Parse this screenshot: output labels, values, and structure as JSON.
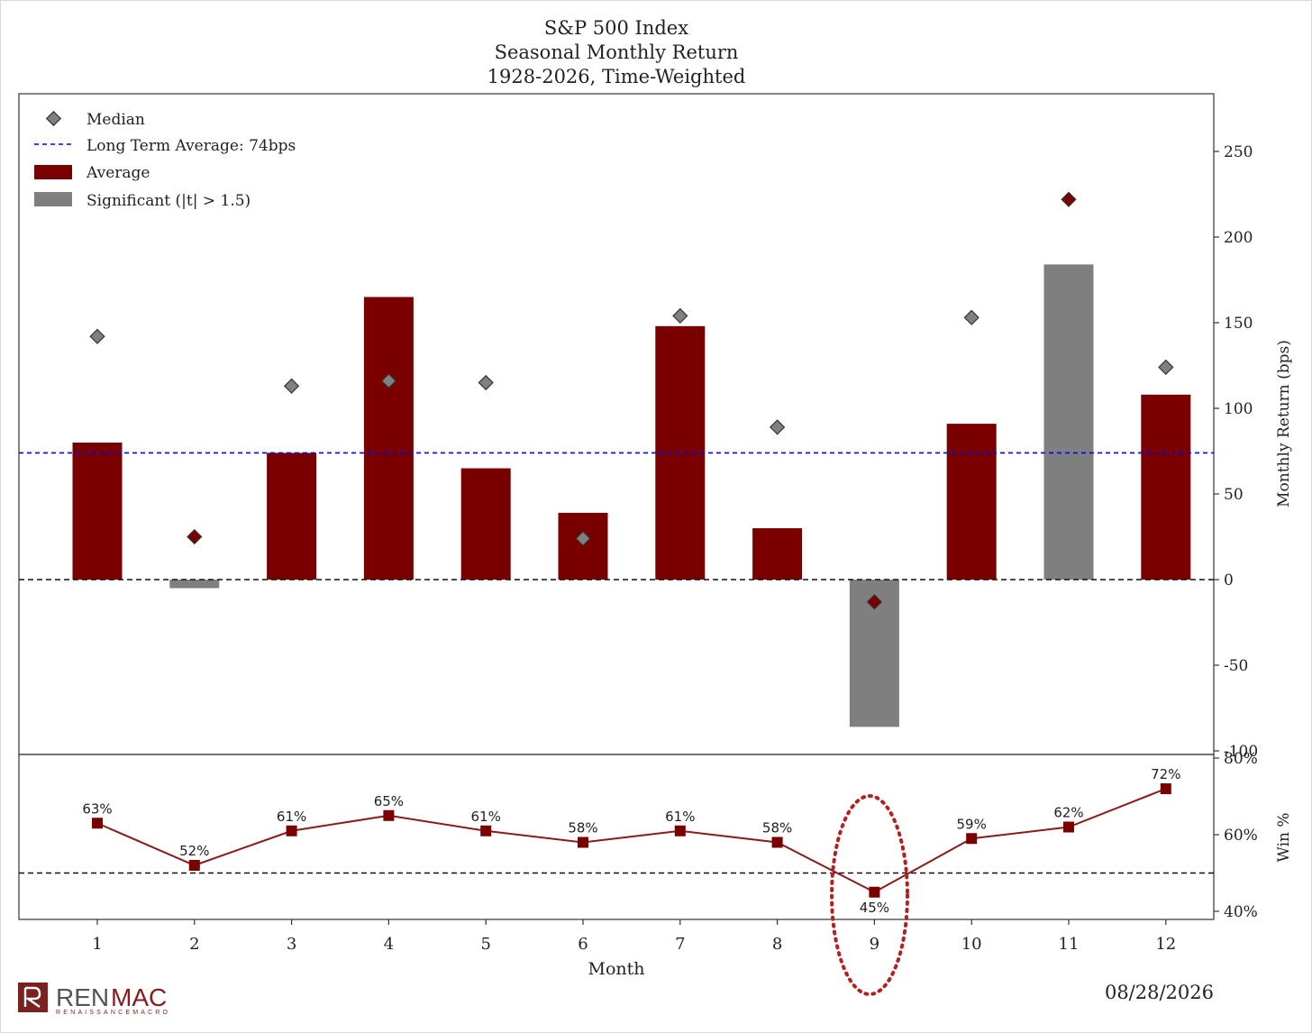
{
  "title_lines": [
    "S&P 500 Index",
    "Seasonal Monthly Return",
    "1928-2026, Time-Weighted"
  ],
  "legend": {
    "median": "Median",
    "long_term_avg": "Long Term Average: 74bps",
    "average": "Average",
    "significant": "Significant (|t| > 1.5)"
  },
  "axes": {
    "top_ylabel": "Monthly Return (bps)",
    "bottom_ylabel": "Win %",
    "xlabel": "Month",
    "top_yticks": [
      "250",
      "200",
      "150",
      "100",
      "50",
      "0",
      "-50",
      "-100"
    ],
    "bottom_yticks": [
      "80%",
      "60%",
      "40%"
    ]
  },
  "date": "08/28/2026",
  "logo": {
    "name_left": "REN",
    "name_right": "MAC",
    "tagline": "RENAISSANCEMACRO"
  },
  "colors": {
    "average": "#7a0000",
    "significant": "#7f7f7f",
    "median_marker": "#808080",
    "long_term_line": "#0000ff",
    "win_line": "#8b1a1a"
  },
  "chart_data": [
    {
      "type": "bar",
      "title": "S&P 500 Index Seasonal Monthly Return 1928-2026, Time-Weighted",
      "categories": [
        "1",
        "2",
        "3",
        "4",
        "5",
        "6",
        "7",
        "8",
        "9",
        "10",
        "11",
        "12"
      ],
      "series": [
        {
          "name": "Average",
          "values": [
            80,
            -5,
            74,
            165,
            65,
            39,
            148,
            30,
            -86,
            91,
            184,
            108
          ]
        },
        {
          "name": "Median",
          "values": [
            142,
            25,
            113,
            116,
            115,
            24,
            154,
            89,
            -13,
            153,
            222,
            124
          ]
        }
      ],
      "significant": [
        false,
        true,
        false,
        false,
        false,
        false,
        false,
        false,
        true,
        false,
        true,
        false
      ],
      "long_term_average": 74,
      "xlabel": "Month",
      "ylabel": "Monthly Return (bps)",
      "ylim": [
        -100,
        280
      ]
    },
    {
      "type": "line",
      "categories": [
        "1",
        "2",
        "3",
        "4",
        "5",
        "6",
        "7",
        "8",
        "9",
        "10",
        "11",
        "12"
      ],
      "values": [
        63,
        52,
        61,
        65,
        61,
        58,
        61,
        58,
        45,
        59,
        62,
        72
      ],
      "labels": [
        "63%",
        "52%",
        "61%",
        "65%",
        "61%",
        "58%",
        "61%",
        "58%",
        "45%",
        "59%",
        "62%",
        "72%"
      ],
      "reference": 50,
      "xlabel": "Month",
      "ylabel": "Win %",
      "ylim": [
        38,
        80
      ]
    }
  ]
}
